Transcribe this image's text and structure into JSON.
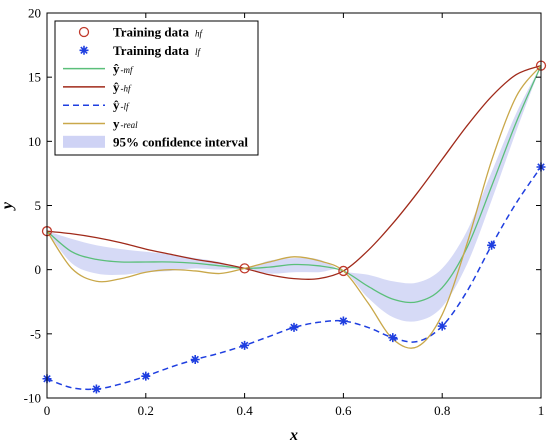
{
  "chart_data": {
    "type": "line",
    "xlabel": "x",
    "ylabel": "y",
    "xlim": [
      0,
      1
    ],
    "ylim": [
      -10,
      20
    ],
    "xticks": [
      "0",
      "0.2",
      "0.4",
      "0.6",
      "0.8",
      "1"
    ],
    "xtick_values": [
      0,
      0.2,
      0.4,
      0.6,
      0.8,
      1
    ],
    "yticks": [
      "-10",
      "-5",
      "0",
      "5",
      "10",
      "15",
      "20"
    ],
    "ytick_values": [
      -10,
      -5,
      0,
      5,
      10,
      15,
      20
    ],
    "grid": false,
    "legend_position": "top-left",
    "series": [
      {
        "name": "Training data hf",
        "legend_main": "Training data",
        "legend_sub": "hf",
        "kind": "markers-circle",
        "color": "#c0392b",
        "x": [
          0,
          0.4,
          0.6,
          1
        ],
        "y": [
          3,
          0.1,
          -0.1,
          15.9
        ]
      },
      {
        "name": "Training data lf",
        "legend_main": "Training data",
        "legend_sub": "lf",
        "kind": "markers-star",
        "color": "#1f3fe0",
        "x": [
          0,
          0.1,
          0.2,
          0.3,
          0.4,
          0.5,
          0.6,
          0.7,
          0.8,
          0.9,
          1
        ],
        "y": [
          -8.5,
          -9.3,
          -8.3,
          -7.0,
          -5.9,
          -4.5,
          -4.0,
          -5.3,
          -4.4,
          1.9,
          8.0
        ]
      },
      {
        "name": "ŷ-mf",
        "legend_main": "ŷ",
        "legend_sub": "-mf",
        "kind": "line",
        "color": "#5bbf7a",
        "x": [
          0,
          0.05,
          0.1,
          0.15,
          0.2,
          0.25,
          0.3,
          0.35,
          0.4,
          0.45,
          0.5,
          0.55,
          0.6,
          0.65,
          0.7,
          0.75,
          0.8,
          0.85,
          0.9,
          0.95,
          1
        ],
        "y": [
          3.0,
          1.4,
          0.8,
          0.6,
          0.6,
          0.6,
          0.5,
          0.3,
          0.1,
          0.2,
          0.4,
          0.3,
          -0.1,
          -1.3,
          -2.3,
          -2.5,
          -1.4,
          1.7,
          6.5,
          11.5,
          15.9
        ]
      },
      {
        "name": "ŷ-hf",
        "legend_main": "ŷ",
        "legend_sub": "-hf",
        "kind": "line",
        "color": "#a02a1a",
        "x": [
          0,
          0.05,
          0.1,
          0.15,
          0.2,
          0.25,
          0.3,
          0.35,
          0.4,
          0.45,
          0.5,
          0.55,
          0.6,
          0.65,
          0.7,
          0.75,
          0.8,
          0.85,
          0.9,
          0.95,
          1
        ],
        "y": [
          3.0,
          2.8,
          2.5,
          2.1,
          1.6,
          1.2,
          0.8,
          0.5,
          0.1,
          -0.4,
          -0.7,
          -0.7,
          -0.1,
          1.5,
          3.6,
          6.0,
          8.6,
          11.2,
          13.5,
          15.2,
          15.9
        ]
      },
      {
        "name": "ŷ-lf",
        "legend_main": "ŷ",
        "legend_sub": "-lf",
        "kind": "dashed-line",
        "color": "#1f3fe0",
        "x": [
          0,
          0.05,
          0.1,
          0.15,
          0.2,
          0.25,
          0.3,
          0.35,
          0.4,
          0.45,
          0.5,
          0.55,
          0.6,
          0.65,
          0.7,
          0.75,
          0.8,
          0.85,
          0.9,
          0.95,
          1
        ],
        "y": [
          -8.5,
          -9.2,
          -9.3,
          -8.9,
          -8.3,
          -7.6,
          -7.0,
          -6.5,
          -5.9,
          -5.2,
          -4.5,
          -4.1,
          -4.0,
          -4.5,
          -5.3,
          -5.6,
          -4.4,
          -1.7,
          1.9,
          5.2,
          8.0
        ]
      },
      {
        "name": "y-real",
        "legend_main": "y",
        "legend_sub": "-real",
        "kind": "line",
        "color": "#c9a84a",
        "x": [
          0,
          0.05,
          0.1,
          0.15,
          0.2,
          0.25,
          0.3,
          0.35,
          0.4,
          0.45,
          0.5,
          0.55,
          0.6,
          0.65,
          0.7,
          0.75,
          0.8,
          0.85,
          0.9,
          0.95,
          1
        ],
        "y": [
          3.0,
          0.1,
          -0.9,
          -0.7,
          -0.2,
          0.0,
          -0.1,
          -0.3,
          0.1,
          0.6,
          1.0,
          0.7,
          -0.1,
          -2.6,
          -5.4,
          -6.0,
          -3.5,
          2.0,
          8.5,
          13.5,
          15.9
        ]
      }
    ],
    "band": {
      "name": "95% confidence interval",
      "legend_main": "95% confidence interval",
      "color": "#cfd3f5",
      "x": [
        0,
        0.05,
        0.1,
        0.15,
        0.2,
        0.25,
        0.3,
        0.35,
        0.4,
        0.45,
        0.5,
        0.55,
        0.6,
        0.65,
        0.7,
        0.75,
        0.8,
        0.85,
        0.9,
        0.95,
        1
      ],
      "upper": [
        3.0,
        2.4,
        1.9,
        1.6,
        1.4,
        1.2,
        0.9,
        0.6,
        0.1,
        0.7,
        0.9,
        0.8,
        -0.1,
        -0.4,
        -0.9,
        -1.0,
        0.1,
        3.0,
        7.6,
        12.2,
        15.9
      ],
      "lower": [
        3.0,
        0.5,
        -0.3,
        -0.4,
        -0.2,
        -0.1,
        0.1,
        0.0,
        0.1,
        -0.3,
        -0.2,
        -0.2,
        -0.1,
        -2.2,
        -3.7,
        -4.0,
        -2.9,
        0.4,
        5.4,
        10.8,
        15.9
      ]
    }
  }
}
